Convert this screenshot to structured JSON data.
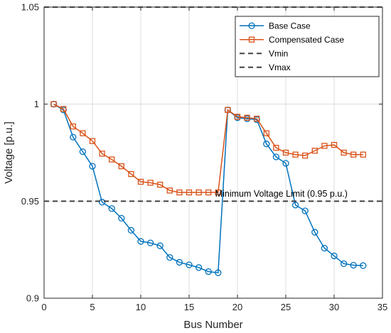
{
  "chart_data": {
    "type": "line",
    "xlabel": "Bus Number",
    "ylabel": "Voltage [p.u.]",
    "xlim": [
      0,
      35
    ],
    "ylim": [
      0.9,
      1.05
    ],
    "xticks": [
      0,
      5,
      10,
      15,
      20,
      25,
      30,
      35
    ],
    "yticks": [
      0.9,
      0.95,
      1,
      1.05
    ],
    "xtick_labels": [
      "0",
      "5",
      "10",
      "15",
      "20",
      "25",
      "30",
      "35"
    ],
    "ytick_labels": [
      "0.9",
      "0.95",
      "1",
      "1.05"
    ],
    "grid": true,
    "legend_position": "top-right",
    "x": [
      1,
      2,
      3,
      4,
      5,
      6,
      7,
      8,
      9,
      10,
      11,
      12,
      13,
      14,
      15,
      16,
      17,
      18,
      19,
      20,
      21,
      22,
      23,
      24,
      25,
      26,
      27,
      28,
      29,
      30,
      31,
      32,
      33
    ],
    "series": [
      {
        "name": "Base Case",
        "color": "#0072BD",
        "marker": "circle",
        "values": [
          1.0,
          0.997,
          0.983,
          0.9755,
          0.968,
          0.9495,
          0.9462,
          0.9412,
          0.935,
          0.9293,
          0.9285,
          0.927,
          0.921,
          0.9185,
          0.9172,
          0.9158,
          0.9137,
          0.9131,
          0.997,
          0.993,
          0.9925,
          0.992,
          0.9795,
          0.9728,
          0.9695,
          0.948,
          0.945,
          0.934,
          0.9258,
          0.9218,
          0.9178,
          0.917,
          0.9168
        ]
      },
      {
        "name": "Compensated Case",
        "color": "#D95319",
        "marker": "square",
        "values": [
          1.0,
          0.9975,
          0.9885,
          0.985,
          0.981,
          0.9745,
          0.9715,
          0.968,
          0.964,
          0.96,
          0.9595,
          0.9585,
          0.9555,
          0.9545,
          0.9545,
          0.9545,
          0.9545,
          0.9545,
          0.997,
          0.9935,
          0.993,
          0.9925,
          0.985,
          0.9775,
          0.975,
          0.974,
          0.9735,
          0.976,
          0.9785,
          0.979,
          0.975,
          0.974,
          0.974
        ]
      },
      {
        "name": "Vmin",
        "color": "#404040",
        "style": "dashed",
        "y": 0.95
      },
      {
        "name": "Vmax",
        "color": "#404040",
        "style": "dashed",
        "y": 1.05
      }
    ],
    "annotations": [
      {
        "text": "Minimum Voltage Limit (0.95 p.u.)",
        "x": 17.7,
        "y": 0.9505
      }
    ]
  }
}
